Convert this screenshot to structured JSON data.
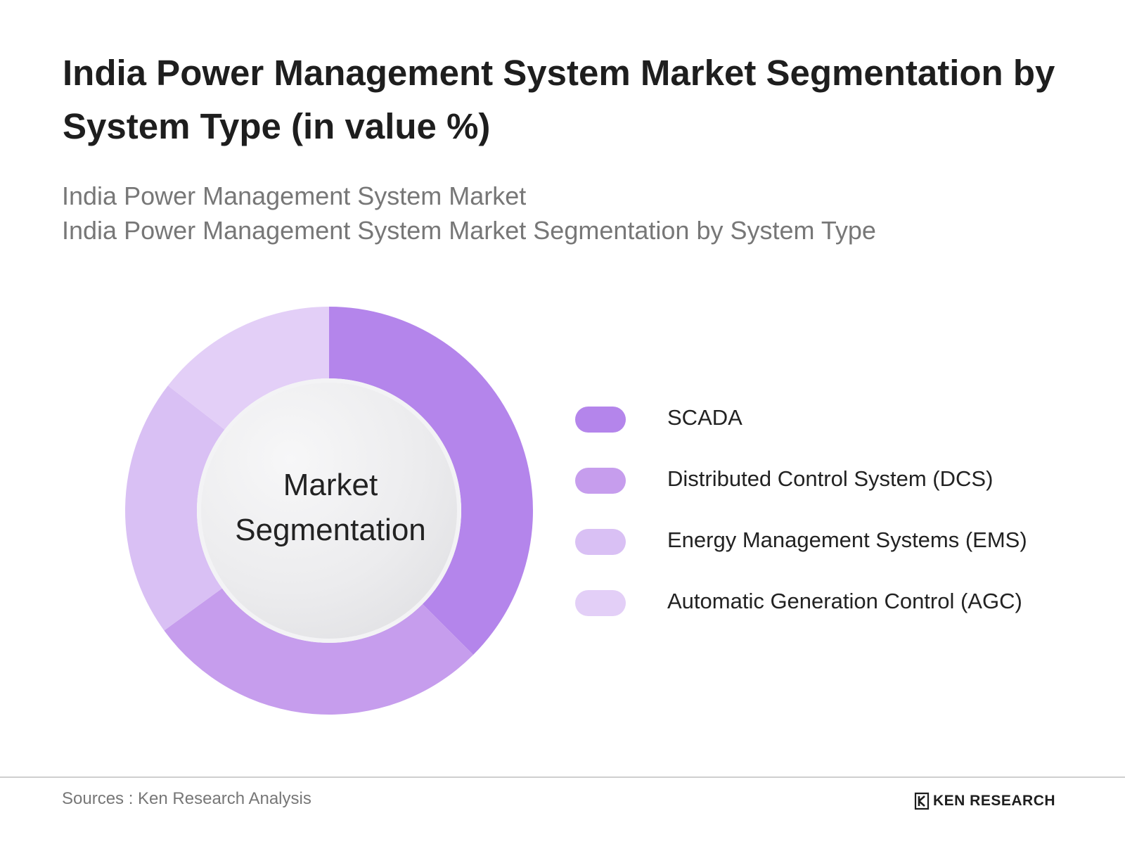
{
  "title": "India Power Management System Market Segmentation by System Type (in value %)",
  "subtitle": {
    "line1": "India Power Management System Market",
    "line2": "India Power Management System Market Segmentation by System Type"
  },
  "center_label": {
    "line1": "Market",
    "line2": "Segmentation"
  },
  "chart_data": {
    "type": "pie",
    "variant": "donut",
    "categories": [
      "SCADA",
      "Distributed Control System (DCS)",
      "Energy Management Systems (EMS)",
      "Automatic Generation Control (AGC)"
    ],
    "values": [
      37.5,
      27.5,
      20.5,
      14.5
    ],
    "colors": [
      "#b485eb",
      "#c69ded",
      "#d9c0f4",
      "#e3cff7"
    ],
    "start_angle_deg": 0,
    "direction": "clockwise",
    "legend_position": "right"
  },
  "legend": {
    "items": [
      {
        "label": "SCADA",
        "color": "#b485eb"
      },
      {
        "label": "Distributed Control System (DCS)",
        "color": "#c69ded"
      },
      {
        "label": "Energy Management Systems (EMS)",
        "color": "#d9c0f4"
      },
      {
        "label": "Automatic Generation Control (AGC)",
        "color": "#e3cff7"
      }
    ]
  },
  "footer": {
    "source": "Sources : Ken Research Analysis",
    "brand": "KEN RESEARCH",
    "brand_icon": "ken-research-logo-icon"
  }
}
